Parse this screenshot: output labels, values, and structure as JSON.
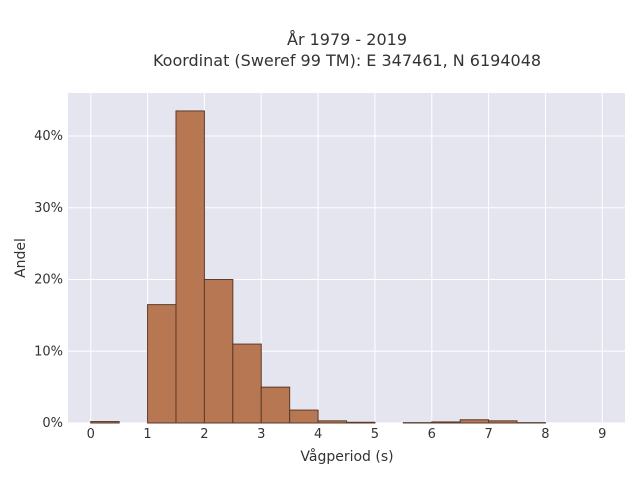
{
  "chart_data": {
    "type": "bar",
    "title": "År 1979 - 2019",
    "subtitle": "Koordinat (Sweref 99 TM): E 347461, N 6194048",
    "xlabel": "Vågperiod (s)",
    "ylabel": "Andel",
    "xlim": [
      -0.4,
      9.4
    ],
    "ylim": [
      0,
      46
    ],
    "xticks": [
      0,
      1,
      2,
      3,
      4,
      5,
      6,
      7,
      8,
      9
    ],
    "yticks": [
      0,
      10,
      20,
      30,
      40
    ],
    "ytick_suffix": "%",
    "grid": true,
    "bins": [
      {
        "x0": 0.0,
        "x1": 0.5,
        "value": 0.2
      },
      {
        "x0": 1.0,
        "x1": 1.5,
        "value": 16.5
      },
      {
        "x0": 1.5,
        "x1": 2.0,
        "value": 43.5
      },
      {
        "x0": 2.0,
        "x1": 2.5,
        "value": 20.0
      },
      {
        "x0": 2.5,
        "x1": 3.0,
        "value": 11.0
      },
      {
        "x0": 3.0,
        "x1": 3.5,
        "value": 5.0
      },
      {
        "x0": 3.5,
        "x1": 4.0,
        "value": 1.8
      },
      {
        "x0": 4.0,
        "x1": 4.5,
        "value": 0.3
      },
      {
        "x0": 4.5,
        "x1": 5.0,
        "value": 0.1
      },
      {
        "x0": 5.5,
        "x1": 6.0,
        "value": 0.05
      },
      {
        "x0": 6.0,
        "x1": 6.5,
        "value": 0.15
      },
      {
        "x0": 6.5,
        "x1": 7.0,
        "value": 0.45
      },
      {
        "x0": 7.0,
        "x1": 7.5,
        "value": 0.3
      },
      {
        "x0": 7.5,
        "x1": 8.0,
        "value": 0.05
      }
    ],
    "colors": {
      "plot_bg": "#e5e5f0",
      "grid": "#ffffff",
      "bar_fill": "#b87753",
      "bar_stroke": "#5a3a28",
      "text": "#333333"
    }
  }
}
